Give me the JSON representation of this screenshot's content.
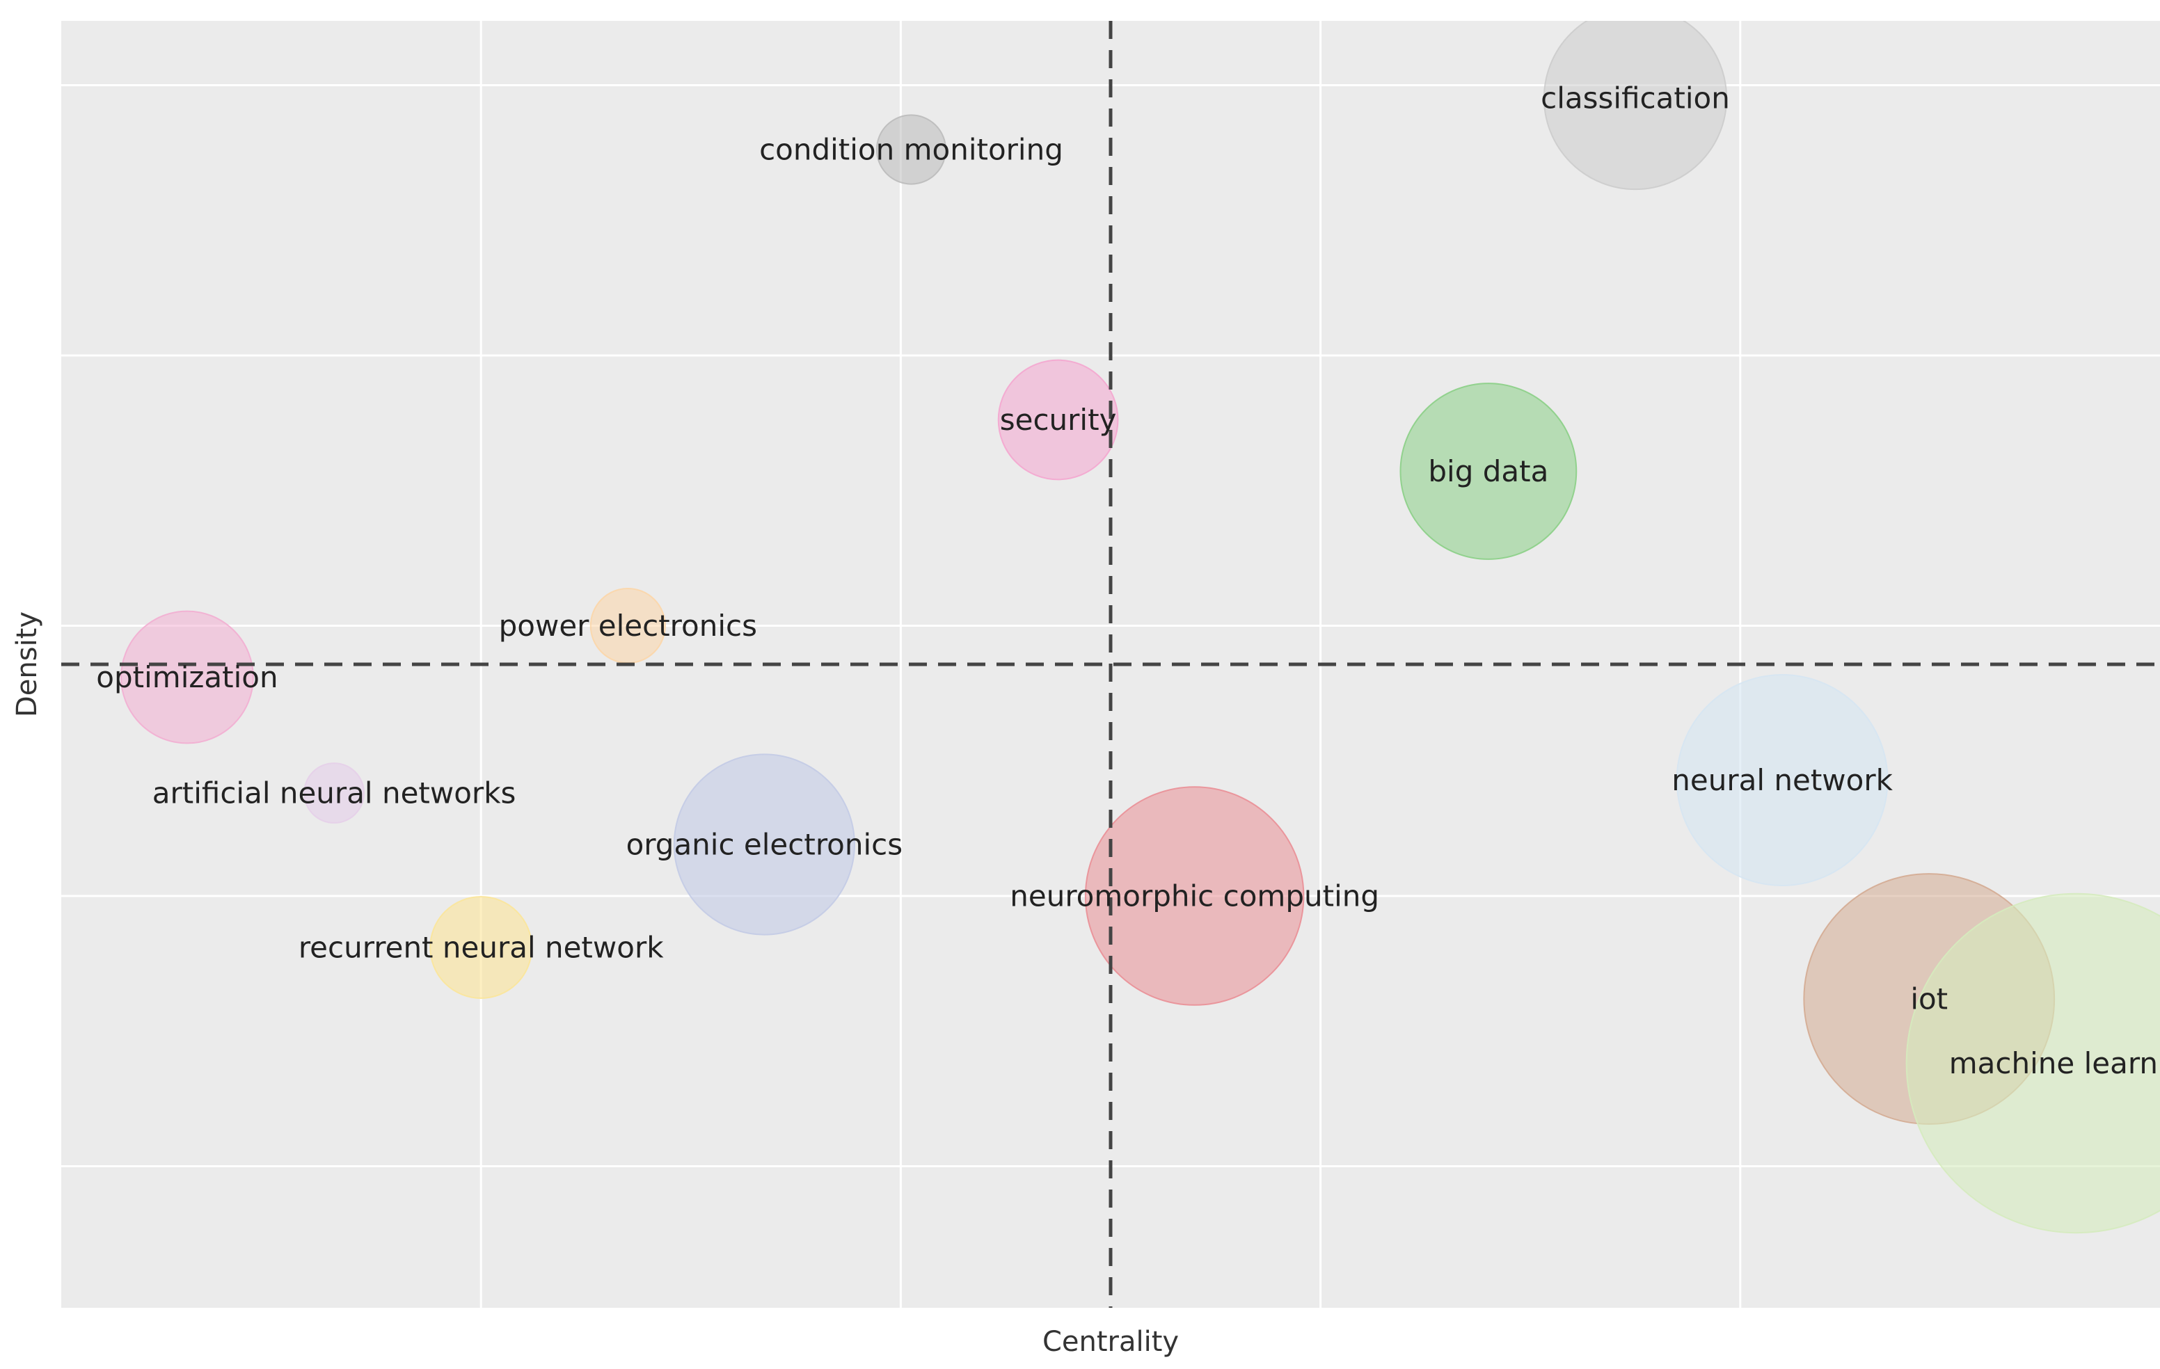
{
  "chart_data": {
    "type": "scatter",
    "subtype": "bubble",
    "title": "",
    "xlabel": "Centrality",
    "ylabel": "Density",
    "xlim": [
      0,
      10
    ],
    "ylim": [
      0,
      10
    ],
    "x_ticks": [
      2,
      4,
      6,
      8
    ],
    "y_ticks": [
      1.1,
      3.2,
      5.3,
      7.4,
      9.5
    ],
    "show_tick_labels": false,
    "grid": true,
    "reference_lines": {
      "x": 5.0,
      "y": 5.0
    },
    "points": [
      {
        "label": "classification",
        "x": 7.5,
        "y": 9.4,
        "size": 4.2,
        "color": "#cccccc",
        "opacity": 0.55
      },
      {
        "label": "condition monitoring",
        "x": 4.05,
        "y": 9.0,
        "size": 0.6,
        "color": "#bbbbbb",
        "opacity": 0.55
      },
      {
        "label": "security",
        "x": 4.75,
        "y": 6.9,
        "size": 1.8,
        "color": "#f4a6cf",
        "opacity": 0.55
      },
      {
        "label": "big data",
        "x": 6.8,
        "y": 6.5,
        "size": 3.9,
        "color": "#8bcf86",
        "opacity": 0.55
      },
      {
        "label": "power electronics",
        "x": 2.7,
        "y": 5.3,
        "size": 0.7,
        "color": "#fcd6a8",
        "opacity": 0.55
      },
      {
        "label": "optimization",
        "x": 0.6,
        "y": 4.9,
        "size": 2.2,
        "color": "#f2aed2",
        "opacity": 0.55
      },
      {
        "label": "neural network",
        "x": 8.2,
        "y": 4.1,
        "size": 5.6,
        "color": "#d6e6f2",
        "opacity": 0.6
      },
      {
        "label": "artificial neural networks",
        "x": 1.3,
        "y": 4.0,
        "size": 0.45,
        "color": "#e5cfe9",
        "opacity": 0.6
      },
      {
        "label": "organic electronics",
        "x": 3.35,
        "y": 3.6,
        "size": 4.1,
        "color": "#c3cbe6",
        "opacity": 0.6
      },
      {
        "label": "neuromorphic computing",
        "x": 5.4,
        "y": 3.2,
        "size": 6.0,
        "color": "#ea8f96",
        "opacity": 0.55
      },
      {
        "label": "recurrent neural network",
        "x": 2.0,
        "y": 2.8,
        "size": 1.3,
        "color": "#fbe59a",
        "opacity": 0.6
      },
      {
        "label": "iot",
        "x": 8.9,
        "y": 2.4,
        "size": 7.9,
        "color": "#d4ab92",
        "opacity": 0.55
      },
      {
        "label": "machine learning",
        "x": 9.6,
        "y": 1.9,
        "size": 14.5,
        "color": "#d5ebbe",
        "opacity": 0.6
      }
    ]
  }
}
